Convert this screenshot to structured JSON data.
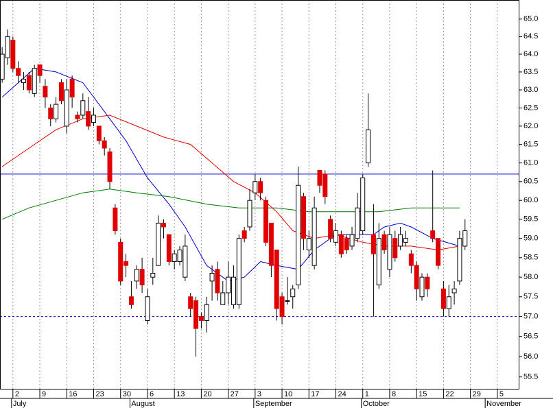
{
  "chart_data": {
    "type": "candlestick",
    "log_scale": true,
    "ylim": [
      55.21,
      65.55
    ],
    "yticks": [
      {
        "value": 55.5,
        "label": "55.5"
      },
      {
        "value": 56.0,
        "label": "56.0"
      },
      {
        "value": 56.5,
        "label": "56.5"
      },
      {
        "value": 57.0,
        "label": "57.0"
      },
      {
        "value": 57.5,
        "label": "57.5"
      },
      {
        "value": 58.0,
        "label": "58.0"
      },
      {
        "value": 58.5,
        "label": "58.5"
      },
      {
        "value": 59.0,
        "label": "59.0"
      },
      {
        "value": 59.5,
        "label": "59.5"
      },
      {
        "value": 60.0,
        "label": "60.0"
      },
      {
        "value": 60.5,
        "label": "60.5"
      },
      {
        "value": 61.0,
        "label": "61.0"
      },
      {
        "value": 61.5,
        "label": "61.5"
      },
      {
        "value": 62.0,
        "label": "62.0"
      },
      {
        "value": 62.5,
        "label": "62.5"
      },
      {
        "value": 63.0,
        "label": "63.0"
      },
      {
        "value": 63.5,
        "label": "63.5"
      },
      {
        "value": 64.0,
        "label": "64.0"
      },
      {
        "value": 64.5,
        "label": "64.5"
      },
      {
        "value": 65.0,
        "label": "65.0"
      }
    ],
    "xlim": [
      -0.4,
      96.1
    ],
    "xticks": [
      {
        "value": 2,
        "label": "2"
      },
      {
        "value": 7,
        "label": "9"
      },
      {
        "value": 12,
        "label": "16"
      },
      {
        "value": 17,
        "label": "23"
      },
      {
        "value": 22,
        "label": "30"
      },
      {
        "value": 27,
        "label": "6"
      },
      {
        "value": 32,
        "label": "13"
      },
      {
        "value": 37,
        "label": "20"
      },
      {
        "value": 42,
        "label": "27"
      },
      {
        "value": 47,
        "label": "3"
      },
      {
        "value": 52,
        "label": "10"
      },
      {
        "value": 57,
        "label": "17"
      },
      {
        "value": 62,
        "label": "24"
      },
      {
        "value": 67,
        "label": "1"
      },
      {
        "value": 72,
        "label": "8"
      },
      {
        "value": 77,
        "label": "15"
      },
      {
        "value": 82,
        "label": "22"
      },
      {
        "value": 87,
        "label": "29"
      },
      {
        "value": 92,
        "label": "5"
      }
    ],
    "month_labels": [
      {
        "value": 2,
        "label": "July"
      },
      {
        "value": 24,
        "label": "August"
      },
      {
        "value": 47,
        "label": "September"
      },
      {
        "value": 67,
        "label": "October"
      },
      {
        "value": 90,
        "label": "November"
      }
    ],
    "grid": true,
    "up_color": "#ffffff",
    "down_color": "#e00000",
    "open": [
      63.3,
      63.9,
      64.4,
      63.6,
      63.2,
      63.4,
      62.9,
      63.7,
      63.1,
      62.5,
      62.2,
      63.2,
      62.0,
      63.3,
      62.3,
      62.3,
      62.4,
      62.1,
      62.0,
      61.6,
      61.3,
      59.8,
      58.9,
      58.4,
      57.5,
      57.9,
      58.2,
      56.9,
      58.0,
      58.3,
      59.4,
      59.1,
      58.4,
      58.4,
      58.0,
      57.5,
      57.4,
      57.0,
      56.9,
      57.9,
      58.2,
      57.3,
      57.6,
      57.3,
      57.3,
      59.2,
      59.3,
      60.2,
      60.5,
      60.0,
      59.4,
      58.7,
      57.5,
      57.4,
      57.5,
      57.8,
      60.1,
      58.7,
      58.3,
      60.8,
      60.7,
      59.5,
      58.9,
      59.1,
      59.0,
      58.8,
      59.0,
      59.2,
      61.0,
      59.1,
      57.8,
      59.1,
      58.2,
      59.0,
      58.8,
      58.9,
      58.6,
      58.3,
      57.5,
      58.0,
      59.2,
      59.0,
      57.7,
      57.2,
      57.6,
      57.9,
      58.8
    ],
    "high": [
      64.2,
      64.7,
      64.5,
      63.8,
      63.5,
      63.5,
      63.7,
      63.7,
      63.3,
      62.6,
      62.8,
      63.3,
      63.3,
      63.4,
      62.4,
      62.9,
      62.8,
      62.5,
      62.0,
      61.7,
      61.4,
      59.9,
      59.0,
      58.6,
      57.9,
      58.3,
      58.5,
      57.7,
      58.5,
      59.6,
      59.5,
      59.1,
      58.7,
      58.8,
      59.1,
      57.6,
      57.5,
      57.1,
      57.5,
      58.3,
      58.4,
      57.9,
      58.4,
      58.3,
      59.1,
      59.3,
      60.3,
      60.7,
      60.6,
      60.1,
      59.4,
      58.7,
      57.6,
      58.0,
      57.8,
      60.9,
      60.2,
      59.2,
      60.1,
      60.8,
      60.8,
      59.6,
      59.4,
      59.2,
      59.1,
      59.3,
      60.2,
      60.7,
      62.9,
      59.9,
      59.4,
      59.2,
      59.3,
      59.2,
      59.3,
      59.2,
      58.7,
      58.4,
      58.1,
      58.1,
      60.8,
      59.0,
      57.9,
      57.8,
      57.9,
      59.2,
      59.5
    ],
    "low": [
      63.2,
      63.7,
      63.5,
      63.2,
      63.0,
      62.9,
      62.8,
      63.2,
      62.5,
      62.0,
      62.1,
      62.6,
      61.8,
      62.5,
      62.1,
      62.2,
      61.9,
      62.0,
      61.5,
      61.2,
      60.3,
      59.1,
      57.8,
      58.0,
      57.2,
      57.7,
      57.6,
      56.8,
      57.8,
      58.3,
      59.0,
      58.3,
      58.2,
      58.3,
      57.9,
      57.0,
      56.0,
      56.7,
      56.6,
      57.4,
      57.4,
      57.3,
      57.3,
      57.2,
      57.2,
      58.9,
      59.2,
      60.0,
      60.0,
      58.8,
      58.0,
      56.9,
      56.8,
      57.3,
      57.2,
      57.7,
      58.7,
      58.5,
      58.2,
      60.2,
      59.9,
      58.9,
      58.8,
      58.5,
      58.6,
      58.7,
      58.9,
      59.1,
      60.9,
      57.0,
      57.7,
      58.6,
      58.0,
      58.4,
      58.7,
      58.8,
      58.1,
      57.4,
      57.4,
      57.5,
      58.9,
      58.2,
      57.0,
      57.0,
      57.3,
      57.8,
      58.7
    ],
    "close": [
      64.0,
      64.5,
      63.6,
      63.4,
      63.3,
      63.0,
      63.6,
      63.4,
      62.8,
      62.2,
      62.6,
      62.7,
      63.0,
      62.8,
      62.2,
      62.7,
      62.0,
      62.3,
      61.6,
      61.4,
      60.5,
      59.2,
      57.9,
      58.3,
      57.3,
      58.2,
      57.8,
      57.5,
      58.1,
      59.4,
      59.3,
      58.4,
      58.6,
      58.7,
      58.8,
      57.2,
      56.7,
      56.9,
      57.3,
      58.1,
      57.6,
      57.6,
      58.0,
      58.0,
      59.0,
      59.0,
      60.0,
      60.5,
      60.2,
      58.9,
      58.3,
      57.2,
      57.0,
      57.4,
      57.7,
      60.4,
      59.0,
      59.0,
      59.8,
      60.4,
      60.1,
      59.0,
      59.2,
      58.6,
      58.7,
      59.1,
      59.8,
      60.6,
      61.9,
      58.6,
      59.0,
      58.7,
      59.1,
      58.5,
      59.1,
      59.0,
      58.3,
      57.7,
      58.0,
      57.7,
      59.0,
      58.3,
      57.2,
      57.5,
      57.7,
      59.0,
      59.2
    ],
    "series": [
      {
        "color": "#0000cc",
        "x": [
          0,
          6,
          10,
          15,
          19,
          23,
          27,
          31,
          34,
          38,
          42,
          45,
          48,
          51,
          55,
          58,
          62,
          66,
          69,
          71,
          74,
          76,
          80,
          85
        ],
        "values": [
          62.8,
          63.6,
          63.5,
          63.2,
          62.4,
          61.6,
          60.6,
          59.9,
          59.3,
          58.3,
          57.9,
          58.0,
          58.4,
          58.3,
          58.2,
          58.7,
          59.1,
          59.1,
          59.1,
          59.3,
          59.4,
          59.3,
          59.0,
          58.8
        ]
      },
      {
        "color": "#dd0000",
        "x": [
          0,
          6,
          10,
          15,
          20,
          25,
          30,
          35,
          39,
          43,
          47,
          51,
          54,
          58,
          62,
          67,
          71,
          76,
          81,
          85
        ],
        "values": [
          60.9,
          61.5,
          61.9,
          62.2,
          62.3,
          62.0,
          61.7,
          61.5,
          61.0,
          60.5,
          60.2,
          59.7,
          59.2,
          59.0,
          59.1,
          58.9,
          58.8,
          58.8,
          58.7,
          58.8
        ]
      },
      {
        "color": "#007700",
        "x": [
          0,
          5,
          10,
          15,
          20,
          25,
          31,
          38,
          44,
          51,
          57,
          63,
          70,
          76,
          80,
          85
        ],
        "values": [
          59.5,
          59.8,
          60.0,
          60.2,
          60.3,
          60.2,
          60.1,
          59.9,
          59.8,
          59.8,
          59.7,
          59.7,
          59.7,
          59.8,
          59.8,
          59.8
        ]
      }
    ],
    "hlines": [
      {
        "value": 60.7,
        "color": "#0000cc",
        "style": "solid"
      },
      {
        "value": 57.0,
        "color": "#0000cc",
        "style": "dashed"
      }
    ]
  }
}
